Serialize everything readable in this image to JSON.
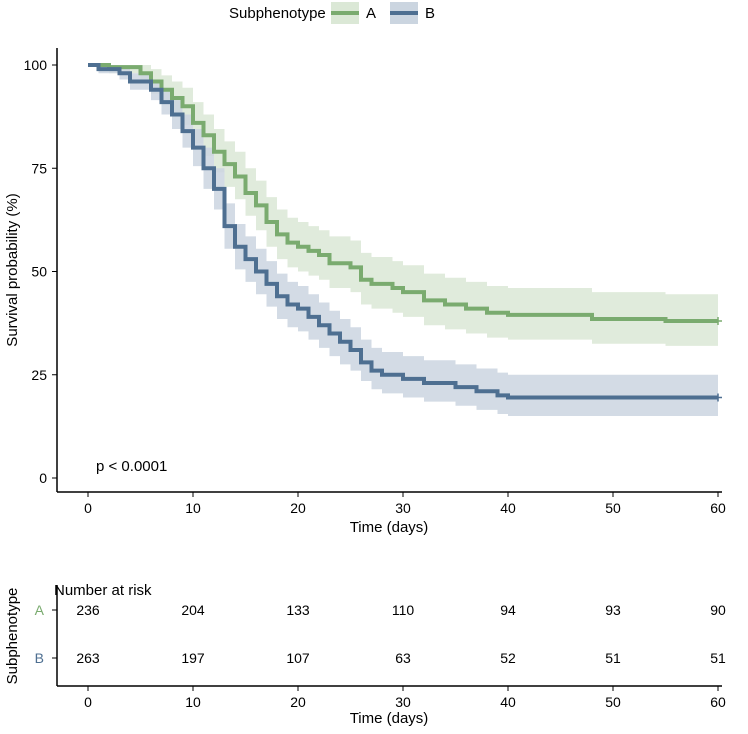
{
  "chart_data": {
    "type": "line",
    "subtype": "kaplan-meier",
    "legend_title": "Subphenotype",
    "legend_position": "top",
    "xlabel": "Time (days)",
    "ylabel": "Survival probability (%)",
    "xlim": [
      -2.8,
      60.5
    ],
    "ylim": [
      -3.5,
      104
    ],
    "xticks": [
      0,
      10,
      20,
      30,
      40,
      50,
      60
    ],
    "yticks": [
      0,
      25,
      50,
      75,
      100
    ],
    "annotation": "p < 0.0001",
    "series": [
      {
        "name": "A",
        "color": "#7aab6f",
        "fill": "#dbe8d6",
        "t": [
          0,
          2,
          5,
          6,
          7,
          8,
          9,
          10,
          11,
          12,
          13,
          14,
          15,
          16,
          17,
          18,
          19,
          20,
          21,
          22,
          23,
          25,
          26,
          27,
          29,
          30,
          32,
          34,
          36,
          38,
          40,
          48,
          55,
          60
        ],
        "s": [
          100,
          99.5,
          98,
          96,
          94,
          92,
          90,
          86,
          83,
          79,
          76,
          73,
          69,
          66,
          62,
          59,
          57,
          56,
          55,
          54,
          52,
          51,
          48,
          47,
          46,
          45,
          43,
          42,
          41,
          40,
          39.5,
          38.5,
          38,
          38
        ],
        "lower": [
          100,
          98,
          96,
          93,
          90.5,
          88,
          85.5,
          81,
          78,
          74,
          70.5,
          67.5,
          63.5,
          60,
          56,
          53,
          51,
          50,
          49,
          48,
          46,
          45,
          42,
          41,
          40,
          39,
          37,
          36,
          35,
          34,
          33.5,
          32.5,
          32,
          32
        ],
        "upper": [
          100,
          100,
          100,
          99,
          97.5,
          96,
          94.5,
          91,
          88,
          84.5,
          81.5,
          79,
          75,
          72,
          68,
          65,
          63,
          62,
          61,
          60,
          58.5,
          57.5,
          54.5,
          53.5,
          52.5,
          51.5,
          49.5,
          48.5,
          47.5,
          46.5,
          46,
          45,
          44.5,
          44.5
        ]
      },
      {
        "name": "B",
        "color": "#4e6f91",
        "fill": "#cbd5e0",
        "t": [
          0,
          1,
          3,
          4,
          6,
          7,
          8,
          9,
          10,
          11,
          12,
          13,
          14,
          15,
          16,
          17,
          18,
          19,
          20,
          21,
          22,
          23,
          24,
          25,
          26,
          27,
          28,
          30,
          32,
          35,
          37,
          39,
          40,
          60
        ],
        "s": [
          100,
          99,
          98,
          96,
          94,
          91,
          88,
          84,
          80,
          75,
          70,
          61,
          56,
          53,
          50,
          47,
          44,
          42,
          41,
          39,
          37,
          35,
          33,
          31,
          28,
          26,
          25,
          24,
          23,
          22,
          21,
          20,
          19.5,
          19.5
        ],
        "lower": [
          100,
          98,
          96.5,
          94,
          91.5,
          88,
          84.5,
          80,
          75.5,
          70,
          65,
          55.5,
          50.5,
          47.5,
          44.5,
          41.5,
          38.5,
          36.5,
          35.5,
          33.5,
          31.5,
          29.5,
          27.5,
          26,
          23.5,
          21.5,
          20.5,
          19.5,
          18.5,
          17.5,
          16.5,
          15.5,
          15,
          15
        ],
        "upper": [
          100,
          100,
          99.5,
          98,
          96.5,
          94,
          91.5,
          88,
          84.5,
          80,
          75,
          66.5,
          61.5,
          58.5,
          55.5,
          52.5,
          49.5,
          47.5,
          46.5,
          44.5,
          42.5,
          40.5,
          38.5,
          36.5,
          33.5,
          31.5,
          30.5,
          29.5,
          28.5,
          27.5,
          26.5,
          25.5,
          25,
          25
        ]
      }
    ]
  },
  "risk_table": {
    "title": "Number at risk",
    "ylabel": "Subphenotype",
    "xlabel": "Time (days)",
    "times": [
      0,
      10,
      20,
      30,
      40,
      50,
      60
    ],
    "rows": [
      {
        "label": "A",
        "color": "#7aab6f",
        "values": [
          236,
          204,
          133,
          110,
          94,
          93,
          90
        ]
      },
      {
        "label": "B",
        "color": "#4e6f91",
        "values": [
          263,
          197,
          107,
          63,
          52,
          51,
          51
        ]
      }
    ]
  }
}
